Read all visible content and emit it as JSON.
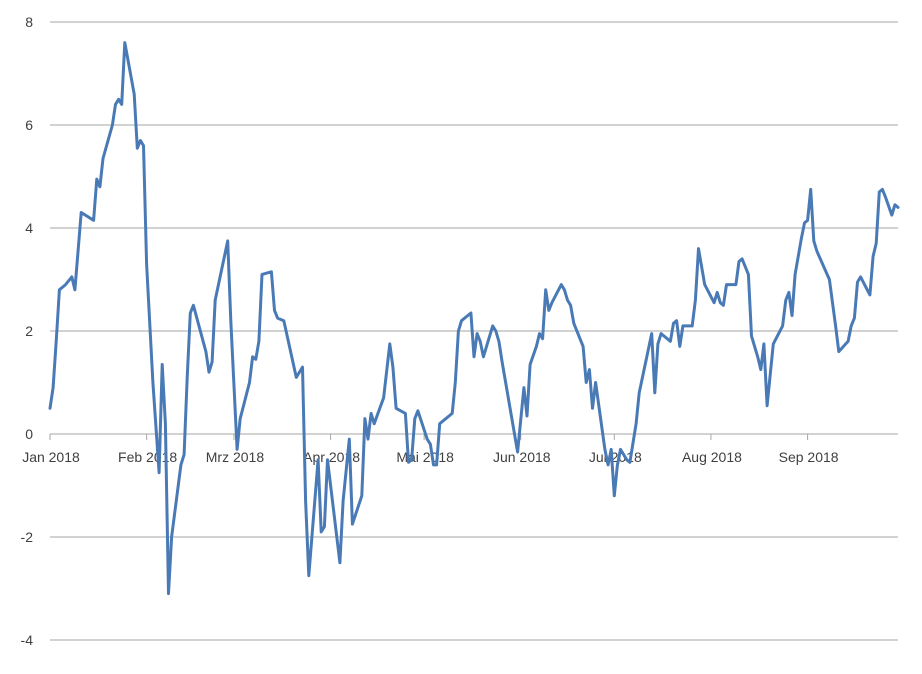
{
  "chart_data": {
    "type": "line",
    "title": "",
    "xlabel": "",
    "ylabel": "",
    "ylim": [
      -4,
      8
    ],
    "yticks": [
      -4,
      -2,
      0,
      2,
      4,
      6,
      8
    ],
    "x_range": [
      "2018-01-01",
      "2018-09-30"
    ],
    "xticks": [
      {
        "date": "2018-01-01",
        "label": "Jan 2018"
      },
      {
        "date": "2018-02-01",
        "label": "Feb 2018"
      },
      {
        "date": "2018-03-01",
        "label": "Mrz 2018"
      },
      {
        "date": "2018-04-01",
        "label": "Apr 2018"
      },
      {
        "date": "2018-05-01",
        "label": "Mai 2018"
      },
      {
        "date": "2018-06-01",
        "label": "Jun 2018"
      },
      {
        "date": "2018-07-01",
        "label": "Jul 2018"
      },
      {
        "date": "2018-08-01",
        "label": "Aug 2018"
      },
      {
        "date": "2018-09-01",
        "label": "Sep 2018"
      }
    ],
    "grid": "horizontal",
    "legend": "none",
    "series": [
      {
        "color": "#4a7ab5",
        "points": [
          [
            "2018-01-01",
            0.5
          ],
          [
            "2018-01-02",
            0.9
          ],
          [
            "2018-01-03",
            1.8
          ],
          [
            "2018-01-04",
            2.8
          ],
          [
            "2018-01-06",
            2.9
          ],
          [
            "2018-01-08",
            3.05
          ],
          [
            "2018-01-09",
            2.8
          ],
          [
            "2018-01-11",
            4.3
          ],
          [
            "2018-01-15",
            4.15
          ],
          [
            "2018-01-16",
            4.95
          ],
          [
            "2018-01-17",
            4.8
          ],
          [
            "2018-01-18",
            5.35
          ],
          [
            "2018-01-21",
            6.0
          ],
          [
            "2018-01-22",
            6.4
          ],
          [
            "2018-01-23",
            6.5
          ],
          [
            "2018-01-24",
            6.4
          ],
          [
            "2018-01-25",
            7.6
          ],
          [
            "2018-01-28",
            6.6
          ],
          [
            "2018-01-29",
            5.55
          ],
          [
            "2018-01-30",
            5.7
          ],
          [
            "2018-01-31",
            5.6
          ],
          [
            "2018-02-01",
            3.3
          ],
          [
            "2018-02-03",
            1.0
          ],
          [
            "2018-02-05",
            -0.75
          ],
          [
            "2018-02-06",
            1.35
          ],
          [
            "2018-02-07",
            0.2
          ],
          [
            "2018-02-08",
            -3.1
          ],
          [
            "2018-02-09",
            -2.0
          ],
          [
            "2018-02-12",
            -0.6
          ],
          [
            "2018-02-13",
            -0.4
          ],
          [
            "2018-02-14",
            1.1
          ],
          [
            "2018-02-15",
            2.35
          ],
          [
            "2018-02-16",
            2.5
          ],
          [
            "2018-02-20",
            1.6
          ],
          [
            "2018-02-21",
            1.2
          ],
          [
            "2018-02-22",
            1.4
          ],
          [
            "2018-02-23",
            2.6
          ],
          [
            "2018-02-27",
            3.75
          ],
          [
            "2018-02-28",
            2.2
          ],
          [
            "2018-03-02",
            -0.3
          ],
          [
            "2018-03-03",
            0.3
          ],
          [
            "2018-03-06",
            1.0
          ],
          [
            "2018-03-07",
            1.5
          ],
          [
            "2018-03-08",
            1.45
          ],
          [
            "2018-03-09",
            1.8
          ],
          [
            "2018-03-10",
            3.1
          ],
          [
            "2018-03-13",
            3.15
          ],
          [
            "2018-03-14",
            2.4
          ],
          [
            "2018-03-15",
            2.25
          ],
          [
            "2018-03-17",
            2.2
          ],
          [
            "2018-03-21",
            1.1
          ],
          [
            "2018-03-23",
            1.3
          ],
          [
            "2018-03-24",
            -1.3
          ],
          [
            "2018-03-25",
            -2.75
          ],
          [
            "2018-03-26",
            -2.0
          ],
          [
            "2018-03-28",
            -0.5
          ],
          [
            "2018-03-29",
            -1.9
          ],
          [
            "2018-03-30",
            -1.8
          ],
          [
            "2018-03-31",
            -0.5
          ],
          [
            "2018-04-01",
            -1.0
          ],
          [
            "2018-04-04",
            -2.5
          ],
          [
            "2018-04-05",
            -1.3
          ],
          [
            "2018-04-07",
            -0.1
          ],
          [
            "2018-04-08",
            -1.75
          ],
          [
            "2018-04-11",
            -1.2
          ],
          [
            "2018-04-12",
            0.3
          ],
          [
            "2018-04-13",
            -0.1
          ],
          [
            "2018-04-14",
            0.4
          ],
          [
            "2018-04-15",
            0.2
          ],
          [
            "2018-04-18",
            0.7
          ],
          [
            "2018-04-20",
            1.75
          ],
          [
            "2018-04-21",
            1.3
          ],
          [
            "2018-04-22",
            0.5
          ],
          [
            "2018-04-25",
            0.4
          ],
          [
            "2018-04-26",
            -0.55
          ],
          [
            "2018-04-27",
            -0.5
          ],
          [
            "2018-04-28",
            0.3
          ],
          [
            "2018-04-29",
            0.45
          ],
          [
            "2018-05-02",
            -0.1
          ],
          [
            "2018-05-03",
            -0.2
          ],
          [
            "2018-05-04",
            -0.6
          ],
          [
            "2018-05-05",
            -0.6
          ],
          [
            "2018-05-06",
            0.2
          ],
          [
            "2018-05-10",
            0.4
          ],
          [
            "2018-05-11",
            1.0
          ],
          [
            "2018-05-12",
            2.0
          ],
          [
            "2018-05-13",
            2.2
          ],
          [
            "2018-05-16",
            2.35
          ],
          [
            "2018-05-17",
            1.5
          ],
          [
            "2018-05-18",
            1.95
          ],
          [
            "2018-05-19",
            1.8
          ],
          [
            "2018-05-20",
            1.5
          ],
          [
            "2018-05-23",
            2.1
          ],
          [
            "2018-05-24",
            2.0
          ],
          [
            "2018-05-25",
            1.8
          ],
          [
            "2018-05-26",
            1.4
          ],
          [
            "2018-05-31",
            -0.35
          ],
          [
            "2018-06-02",
            0.9
          ],
          [
            "2018-06-03",
            0.35
          ],
          [
            "2018-06-04",
            1.35
          ],
          [
            "2018-06-06",
            1.7
          ],
          [
            "2018-06-07",
            1.95
          ],
          [
            "2018-06-08",
            1.85
          ],
          [
            "2018-06-09",
            2.8
          ],
          [
            "2018-06-10",
            2.4
          ],
          [
            "2018-06-11",
            2.55
          ],
          [
            "2018-06-14",
            2.9
          ],
          [
            "2018-06-15",
            2.8
          ],
          [
            "2018-06-16",
            2.6
          ],
          [
            "2018-06-17",
            2.5
          ],
          [
            "2018-06-18",
            2.15
          ],
          [
            "2018-06-21",
            1.7
          ],
          [
            "2018-06-22",
            1.0
          ],
          [
            "2018-06-23",
            1.25
          ],
          [
            "2018-06-24",
            0.5
          ],
          [
            "2018-06-25",
            1.0
          ],
          [
            "2018-06-28",
            -0.3
          ],
          [
            "2018-06-29",
            -0.6
          ],
          [
            "2018-06-30",
            -0.3
          ],
          [
            "2018-07-01",
            -1.2
          ],
          [
            "2018-07-02",
            -0.6
          ],
          [
            "2018-07-03",
            -0.3
          ],
          [
            "2018-07-05",
            -0.5
          ],
          [
            "2018-07-06",
            -0.55
          ],
          [
            "2018-07-08",
            0.2
          ],
          [
            "2018-07-09",
            0.8
          ],
          [
            "2018-07-13",
            1.95
          ],
          [
            "2018-07-14",
            0.8
          ],
          [
            "2018-07-15",
            1.75
          ],
          [
            "2018-07-16",
            1.95
          ],
          [
            "2018-07-19",
            1.8
          ],
          [
            "2018-07-20",
            2.15
          ],
          [
            "2018-07-21",
            2.2
          ],
          [
            "2018-07-22",
            1.7
          ],
          [
            "2018-07-23",
            2.1
          ],
          [
            "2018-07-26",
            2.1
          ],
          [
            "2018-07-27",
            2.6
          ],
          [
            "2018-07-28",
            3.6
          ],
          [
            "2018-07-30",
            2.9
          ],
          [
            "2018-08-02",
            2.55
          ],
          [
            "2018-08-03",
            2.75
          ],
          [
            "2018-08-04",
            2.55
          ],
          [
            "2018-08-05",
            2.5
          ],
          [
            "2018-08-06",
            2.9
          ],
          [
            "2018-08-09",
            2.9
          ],
          [
            "2018-08-10",
            3.35
          ],
          [
            "2018-08-11",
            3.4
          ],
          [
            "2018-08-13",
            3.1
          ],
          [
            "2018-08-14",
            1.9
          ],
          [
            "2018-08-16",
            1.5
          ],
          [
            "2018-08-17",
            1.25
          ],
          [
            "2018-08-18",
            1.75
          ],
          [
            "2018-08-19",
            0.55
          ],
          [
            "2018-08-21",
            1.75
          ],
          [
            "2018-08-24",
            2.1
          ],
          [
            "2018-08-25",
            2.6
          ],
          [
            "2018-08-26",
            2.75
          ],
          [
            "2018-08-27",
            2.3
          ],
          [
            "2018-08-28",
            3.1
          ],
          [
            "2018-08-30",
            3.8
          ],
          [
            "2018-08-31",
            4.1
          ],
          [
            "2018-09-01",
            4.15
          ],
          [
            "2018-09-02",
            4.75
          ],
          [
            "2018-09-03",
            3.75
          ],
          [
            "2018-09-04",
            3.55
          ],
          [
            "2018-09-08",
            3.0
          ],
          [
            "2018-09-09",
            2.55
          ],
          [
            "2018-09-10",
            2.1
          ],
          [
            "2018-09-11",
            1.6
          ],
          [
            "2018-09-14",
            1.8
          ],
          [
            "2018-09-15",
            2.1
          ],
          [
            "2018-09-16",
            2.25
          ],
          [
            "2018-09-17",
            2.95
          ],
          [
            "2018-09-18",
            3.05
          ],
          [
            "2018-09-21",
            2.7
          ],
          [
            "2018-09-22",
            3.45
          ],
          [
            "2018-09-23",
            3.7
          ],
          [
            "2018-09-24",
            4.7
          ],
          [
            "2018-09-25",
            4.75
          ],
          [
            "2018-09-26",
            4.6
          ],
          [
            "2018-09-28",
            4.25
          ],
          [
            "2018-09-29",
            4.45
          ],
          [
            "2018-09-30",
            4.4
          ]
        ]
      }
    ]
  }
}
